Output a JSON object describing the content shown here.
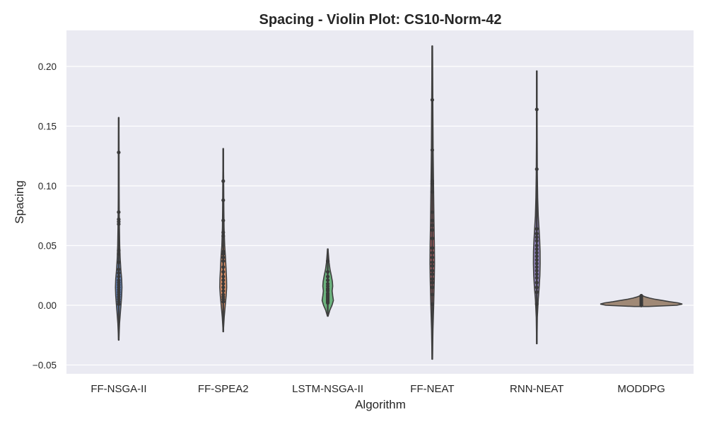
{
  "chart_data": {
    "type": "violin",
    "title": "Spacing - Violin Plot: CS10-Norm-42",
    "xlabel": "Algorithm",
    "ylabel": "Spacing",
    "ylim": [
      -0.058,
      0.232
    ],
    "yticks": [
      -0.05,
      0.0,
      0.05,
      0.1,
      0.15,
      0.2
    ],
    "ytick_labels": [
      "−0.05",
      "0.00",
      "0.05",
      "0.10",
      "0.15",
      "0.20"
    ],
    "grid": true,
    "categories": [
      "FF-NSGA-II",
      "FF-SPEA2",
      "LSTM-NSGA-II",
      "FF-NEAT",
      "RNN-NEAT",
      "MODDPG"
    ],
    "series": [
      {
        "color": "#4c72b0",
        "extent": [
          -0.029,
          0.157
        ],
        "points": [
          0.128,
          0.078,
          0.072,
          0.07,
          0.068,
          0.046,
          0.043,
          0.036,
          0.03,
          0.027,
          0.024,
          0.021,
          0.019,
          0.017,
          0.015,
          0.013,
          0.011,
          0.009,
          0.007,
          0.005,
          0.003,
          0.001
        ],
        "profile": [
          [
            -0.029,
            0.2
          ],
          [
            -0.015,
            1.2
          ],
          [
            -0.005,
            2.5
          ],
          [
            0.0,
            3.2
          ],
          [
            0.008,
            4.2
          ],
          [
            0.015,
            4.6
          ],
          [
            0.022,
            4.2
          ],
          [
            0.03,
            3.0
          ],
          [
            0.04,
            2.0
          ],
          [
            0.05,
            1.4
          ],
          [
            0.065,
            1.0
          ],
          [
            0.08,
            0.7
          ],
          [
            0.1,
            0.5
          ],
          [
            0.13,
            0.4
          ],
          [
            0.157,
            0.2
          ]
        ]
      },
      {
        "color": "#dd8452",
        "extent": [
          -0.022,
          0.131
        ],
        "points": [
          0.104,
          0.088,
          0.071,
          0.061,
          0.058,
          0.045,
          0.043,
          0.04,
          0.037,
          0.032,
          0.028,
          0.024,
          0.021,
          0.018,
          0.015,
          0.012,
          0.009,
          0.007,
          0.005,
          0.003
        ],
        "profile": [
          [
            -0.022,
            0.2
          ],
          [
            -0.01,
            1.3
          ],
          [
            0.0,
            2.8
          ],
          [
            0.008,
            4.2
          ],
          [
            0.015,
            4.8
          ],
          [
            0.022,
            4.6
          ],
          [
            0.03,
            4.0
          ],
          [
            0.04,
            3.2
          ],
          [
            0.05,
            2.0
          ],
          [
            0.065,
            1.2
          ],
          [
            0.08,
            0.8
          ],
          [
            0.1,
            0.6
          ],
          [
            0.131,
            0.2
          ]
        ]
      },
      {
        "color": "#55a868",
        "extent": [
          -0.009,
          0.047
        ],
        "points": [
          0.037,
          0.028,
          0.024,
          0.021,
          0.018,
          0.016,
          0.014,
          0.013,
          0.012,
          0.01,
          0.009,
          0.008,
          0.007,
          0.006,
          0.005,
          0.004,
          0.003,
          0.002
        ],
        "profile": [
          [
            -0.009,
            0.5
          ],
          [
            -0.004,
            3.0
          ],
          [
            0.0,
            6.0
          ],
          [
            0.004,
            8.0
          ],
          [
            0.008,
            7.0
          ],
          [
            0.012,
            6.2
          ],
          [
            0.016,
            7.0
          ],
          [
            0.02,
            6.5
          ],
          [
            0.025,
            5.0
          ],
          [
            0.03,
            3.2
          ],
          [
            0.036,
            1.8
          ],
          [
            0.042,
            1.0
          ],
          [
            0.047,
            0.3
          ]
        ]
      },
      {
        "color": "#c44e52",
        "extent": [
          -0.045,
          0.217
        ],
        "points": [
          0.172,
          0.13,
          0.104,
          0.102,
          0.095,
          0.078,
          0.071,
          0.067,
          0.063,
          0.056,
          0.048,
          0.044,
          0.04,
          0.036,
          0.033,
          0.029,
          0.026,
          0.022,
          0.019,
          0.015,
          0.009,
          0.001
        ],
        "profile": [
          [
            -0.045,
            0.3
          ],
          [
            -0.02,
            1.0
          ],
          [
            0.0,
            2.0
          ],
          [
            0.02,
            2.8
          ],
          [
            0.035,
            3.2
          ],
          [
            0.05,
            3.0
          ],
          [
            0.07,
            2.4
          ],
          [
            0.1,
            1.8
          ],
          [
            0.13,
            1.2
          ],
          [
            0.17,
            0.8
          ],
          [
            0.217,
            0.3
          ]
        ]
      },
      {
        "color": "#8172b3",
        "extent": [
          -0.032,
          0.196
        ],
        "points": [
          0.164,
          0.114,
          0.064,
          0.06,
          0.057,
          0.054,
          0.05,
          0.047,
          0.044,
          0.041,
          0.038,
          0.035,
          0.032,
          0.029,
          0.026,
          0.023,
          0.019,
          0.015,
          0.011,
          0.001
        ],
        "profile": [
          [
            -0.032,
            0.3
          ],
          [
            -0.01,
            0.8
          ],
          [
            0.005,
            2.0
          ],
          [
            0.015,
            3.4
          ],
          [
            0.025,
            4.4
          ],
          [
            0.035,
            4.8
          ],
          [
            0.045,
            4.6
          ],
          [
            0.055,
            4.0
          ],
          [
            0.065,
            3.0
          ],
          [
            0.075,
            2.0
          ],
          [
            0.09,
            1.2
          ],
          [
            0.11,
            0.8
          ],
          [
            0.14,
            0.5
          ],
          [
            0.196,
            0.3
          ]
        ]
      },
      {
        "color": "#937860",
        "extent": [
          -0.001,
          0.008
        ],
        "points": [
          0.008,
          0.007,
          0.006,
          0.005,
          0.004,
          0.003,
          0.002,
          0.001,
          0.0,
          0.0
        ],
        "profile": [
          [
            -0.001,
            10.0
          ],
          [
            0.0,
            50.0
          ],
          [
            0.001,
            58.0
          ],
          [
            0.002,
            52.0
          ],
          [
            0.003,
            40.0
          ],
          [
            0.004,
            30.0
          ],
          [
            0.005,
            20.0
          ],
          [
            0.006,
            12.0
          ],
          [
            0.007,
            6.0
          ],
          [
            0.008,
            2.0
          ]
        ]
      }
    ]
  }
}
